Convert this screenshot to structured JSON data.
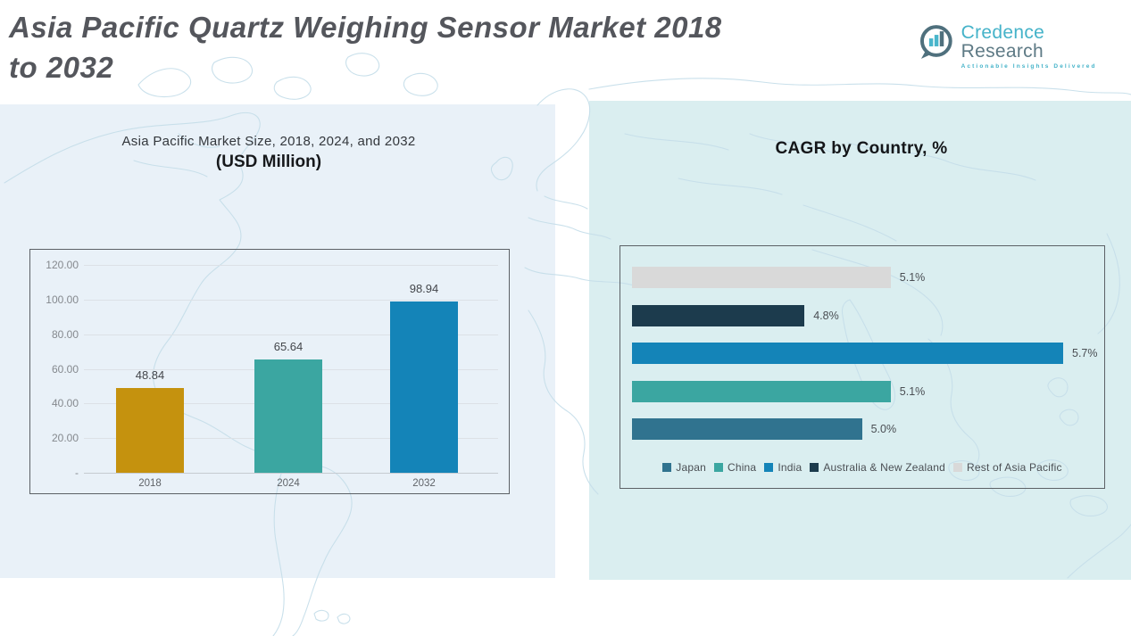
{
  "header": {
    "title": "Asia Pacific Quartz Weighing Sensor Market 2018 to 2032",
    "title_lines": [
      "Asia Pacific Quartz Weighing Sensor Market 2018",
      "to 2032"
    ],
    "logo": {
      "brand_primary": "Credence",
      "brand_secondary": "Research",
      "tagline": "Actionable Insights Delivered",
      "brand_primary_color": "#45B3C9",
      "brand_secondary_color": "#5E7A85"
    }
  },
  "palette": {
    "title_color": "#54565C",
    "left_panel_bg": "#E9F1F8",
    "right_panel_bg": "#DAEEF0",
    "map_line_color": "#C7DFEA"
  },
  "chart_data": [
    {
      "type": "bar",
      "title": "Asia Pacific Market Size, 2018, 2024, and 2032",
      "subtitle": "(USD Million)",
      "categories": [
        "2018",
        "2024",
        "2032"
      ],
      "values": [
        48.84,
        65.64,
        98.94
      ],
      "value_labels": [
        "48.84",
        "65.64",
        "98.94"
      ],
      "bar_colors": [
        "#C5920E",
        "#3BA6A1",
        "#1484B8"
      ],
      "xlabel": "",
      "ylabel": "",
      "ylim": [
        0,
        120
      ],
      "ytick_interval": 20,
      "ytick_labels": [
        "120.00",
        "100.00",
        "80.00",
        "60.00",
        "40.00",
        "20.00",
        "-"
      ],
      "grid": true,
      "legend": false
    },
    {
      "type": "bar-horizontal",
      "title": "CAGR by Country, %",
      "categories_top_to_bottom": [
        "Rest of Asia Pacific",
        "Australia & New Zealand",
        "India",
        "China",
        "Japan"
      ],
      "values_top_to_bottom": [
        5.1,
        4.8,
        5.7,
        5.1,
        5.0
      ],
      "value_labels_top_to_bottom": [
        "5.1%",
        "4.8%",
        "5.7%",
        "5.1%",
        "5.0%"
      ],
      "bar_colors_top_to_bottom": [
        "#D9D9D9",
        "#1C3B4D",
        "#1484B8",
        "#3BA6A1",
        "#30738F"
      ],
      "xlim": [
        4.2,
        5.8
      ],
      "grid": false,
      "legend_position": "bottom",
      "legend": [
        "Japan",
        "China",
        "India",
        "Australia & New Zealand",
        "Rest of Asia Pacific"
      ],
      "legend_colors": [
        "#30738F",
        "#3BA6A1",
        "#1484B8",
        "#1C3B4D",
        "#D9D9D9"
      ]
    }
  ]
}
